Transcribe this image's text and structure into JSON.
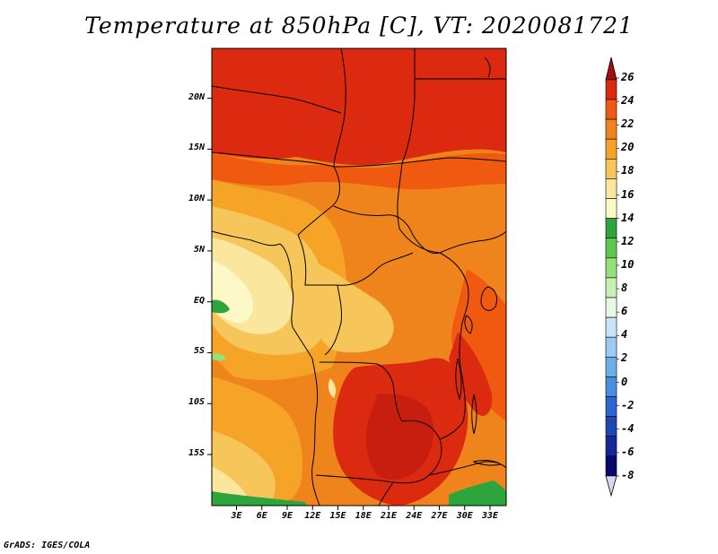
{
  "title": "Temperature at 850hPa [C], VT: 2020081721",
  "credit": "GrADS: IGES/COLA",
  "map": {
    "lat_labels": [
      "20N",
      "15N",
      "10N",
      "5N",
      "EQ",
      "5S",
      "10S",
      "15S"
    ],
    "lat_values": [
      20,
      15,
      10,
      5,
      0,
      -5,
      -10,
      -15
    ],
    "lon_labels": [
      "3E",
      "6E",
      "9E",
      "12E",
      "15E",
      "18E",
      "21E",
      "24E",
      "27E",
      "30E",
      "33E"
    ],
    "lon_values": [
      3,
      6,
      9,
      12,
      15,
      18,
      21,
      24,
      27,
      30,
      33
    ]
  },
  "colorbar": {
    "labels": [
      "26",
      "24",
      "22",
      "20",
      "18",
      "16",
      "14",
      "12",
      "10",
      "8",
      "6",
      "4",
      "2",
      "0",
      "-2",
      "-4",
      "-6",
      "-8"
    ],
    "colors": [
      "#a01010",
      "#dc2a10",
      "#f05a10",
      "#f0841c",
      "#f5a428",
      "#f7c65a",
      "#fae69c",
      "#fcf8c8",
      "#2ea43c",
      "#5dc850",
      "#96e07c",
      "#c8f0b4",
      "#e6f8e6",
      "#c8e4f8",
      "#9ccaf0",
      "#6eaee6",
      "#4a8ee0",
      "#2d64d6",
      "#1e46b4",
      "#15289a",
      "#0a0a6e",
      "#d8d8f5"
    ],
    "units": "C"
  }
}
